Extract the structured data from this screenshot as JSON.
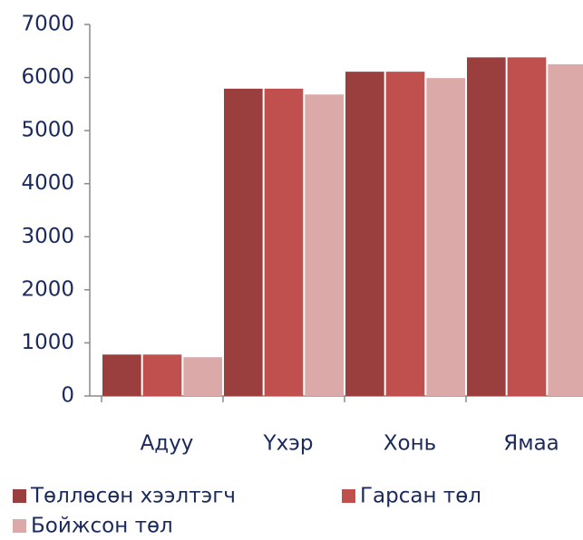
{
  "chart_data": {
    "type": "bar",
    "categories": [
      "Адуу",
      "Үхэр",
      "Хонь",
      "Ямаа"
    ],
    "series": [
      {
        "name": "Төллөсөн хээлтэгч",
        "color": "#9b3f3e",
        "values": [
          780,
          5790,
          6110,
          6380
        ]
      },
      {
        "name": "Гарсан төл",
        "color": "#c0504d",
        "values": [
          780,
          5790,
          6110,
          6380
        ]
      },
      {
        "name": "Бойжсон төл",
        "color": "#dba9a8",
        "values": [
          730,
          5680,
          5990,
          6250
        ]
      }
    ],
    "ylim": [
      0,
      7000
    ],
    "yticks": [
      0,
      1000,
      2000,
      3000,
      4000,
      5000,
      6000,
      7000
    ],
    "grid": false
  }
}
